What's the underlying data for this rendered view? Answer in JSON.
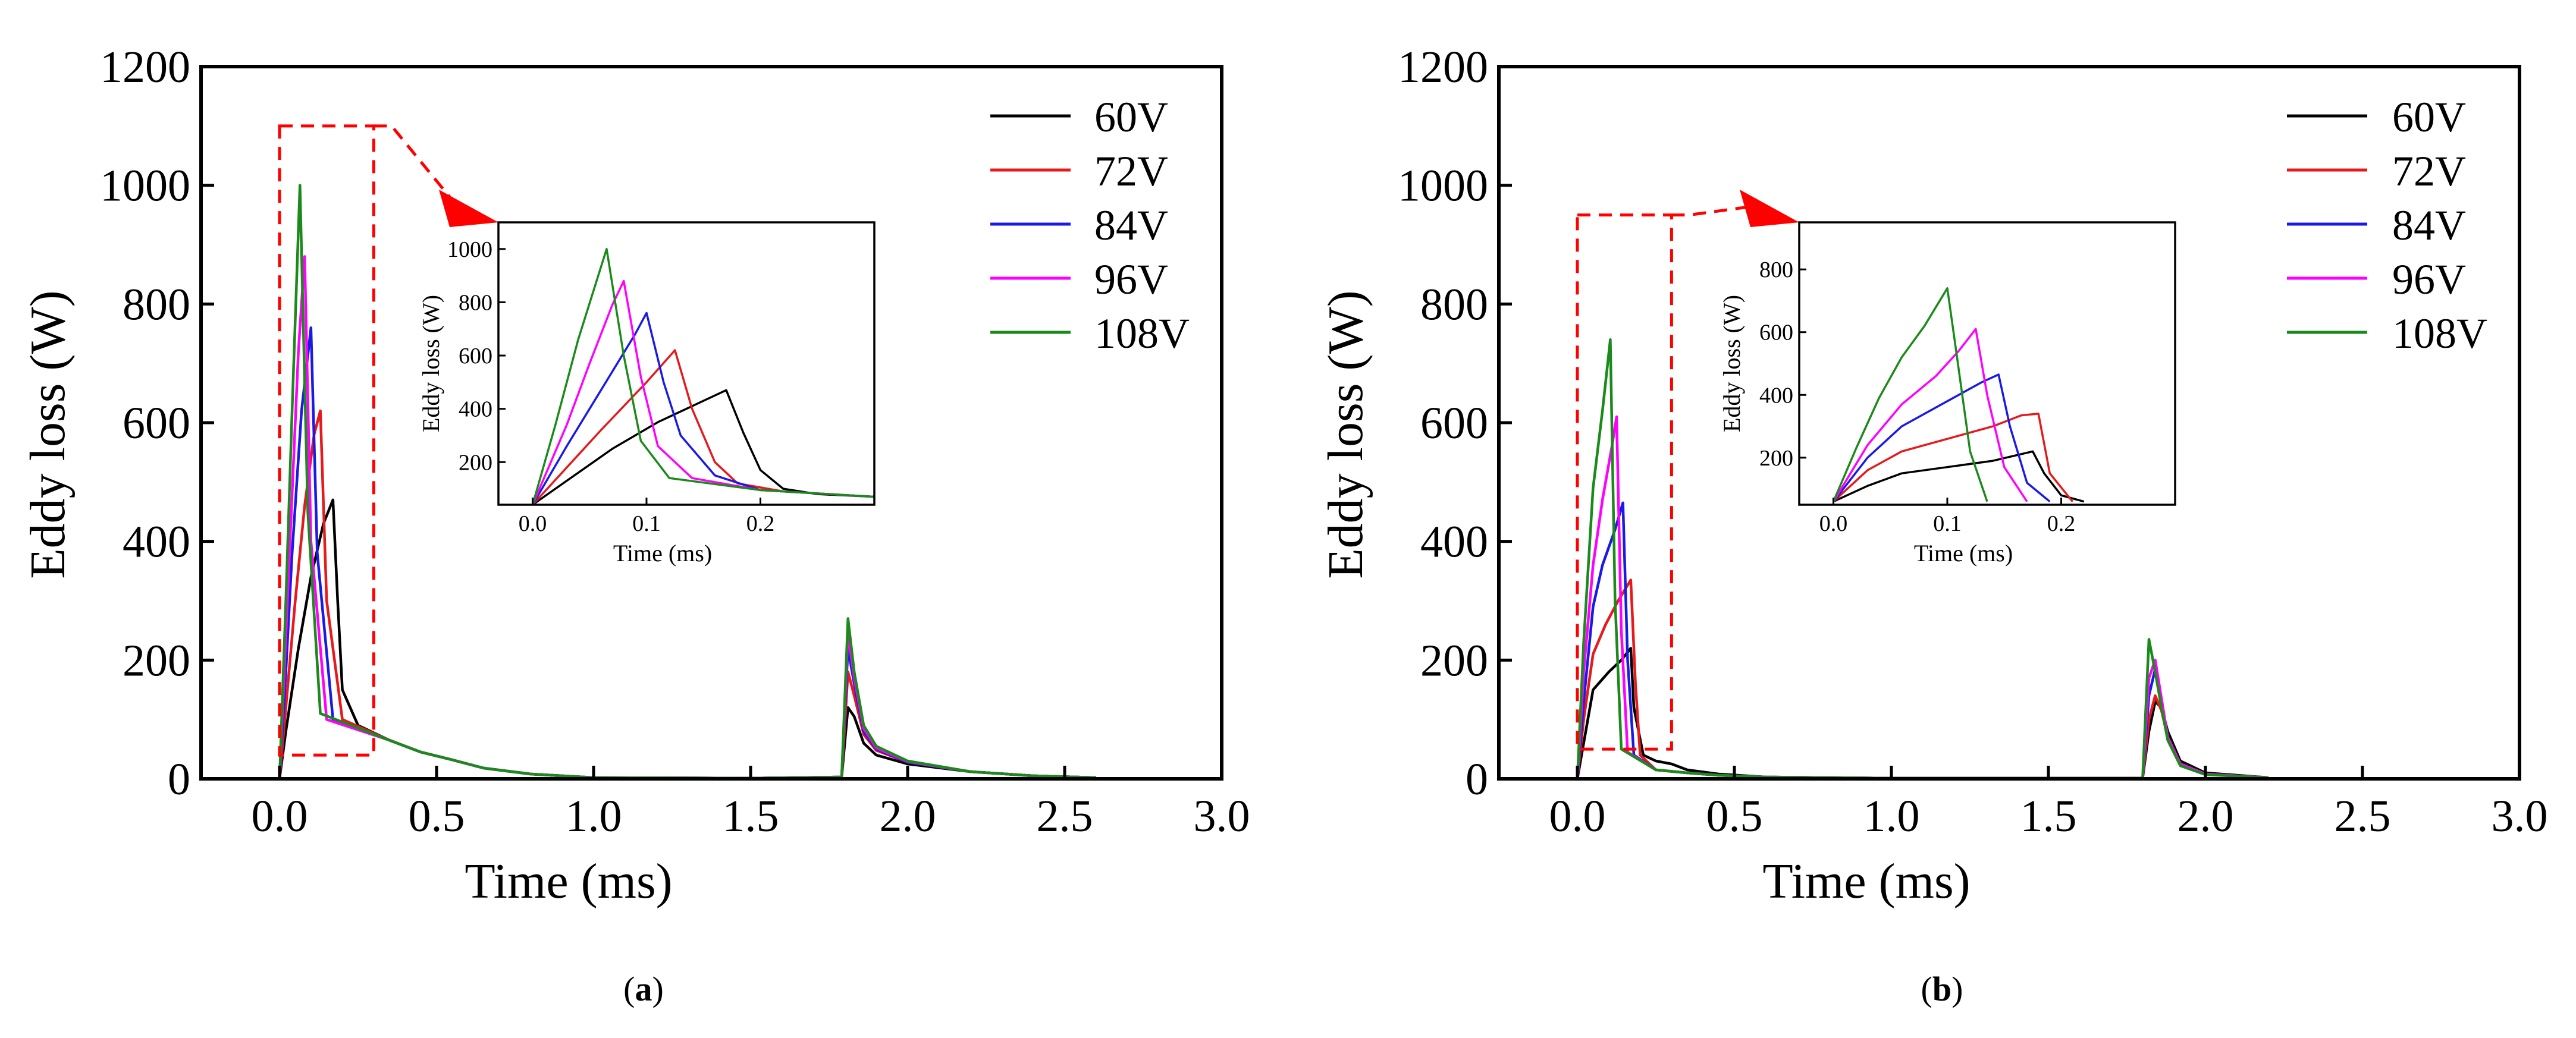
{
  "figure": {
    "captions": [
      "(a)",
      "(b)"
    ],
    "caption_letters": [
      "a",
      "b"
    ],
    "colors": {
      "60V": "#000000",
      "72V": "#e41a1c",
      "84V": "#1a1ae6",
      "96V": "#ff00ff",
      "108V": "#1a8a1a",
      "zoom_box": "#ff0000"
    }
  },
  "chart_data": [
    {
      "id": "a",
      "type": "line",
      "xlabel": "Time (ms)",
      "ylabel": "Eddy loss (W)",
      "xlim": [
        -0.25,
        3.0
      ],
      "ylim": [
        0,
        1200
      ],
      "xticks": [
        0.0,
        0.5,
        1.0,
        1.5,
        2.0,
        2.5,
        3.0
      ],
      "yticks": [
        0,
        200,
        400,
        600,
        800,
        1000,
        1200
      ],
      "legend_position": "top-right",
      "series": [
        {
          "name": "60V",
          "color": "#000000",
          "x": [
            0,
            0.02,
            0.06,
            0.1,
            0.14,
            0.17,
            0.185,
            0.2,
            0.25,
            0.35,
            0.45,
            0.55,
            0.65,
            0.8,
            1.0,
            1.5,
            1.79,
            1.81,
            1.83,
            1.86,
            1.9,
            2.0,
            2.2,
            2.4,
            2.6
          ],
          "y": [
            0,
            80,
            220,
            340,
            430,
            470,
            300,
            150,
            90,
            65,
            45,
            32,
            18,
            8,
            2,
            1,
            3,
            120,
            105,
            60,
            40,
            25,
            12,
            5,
            2
          ]
        },
        {
          "name": "72V",
          "color": "#e41a1c",
          "x": [
            0,
            0.02,
            0.05,
            0.08,
            0.11,
            0.13,
            0.15,
            0.2,
            0.35,
            0.45,
            0.55,
            0.65,
            0.8,
            1.0,
            1.5,
            1.79,
            1.81,
            1.83,
            1.86,
            1.9,
            2.0,
            2.2,
            2.4,
            2.6
          ],
          "y": [
            0,
            120,
            300,
            460,
            580,
            620,
            300,
            100,
            65,
            45,
            32,
            18,
            8,
            2,
            1,
            3,
            180,
            140,
            75,
            48,
            28,
            12,
            5,
            2
          ]
        },
        {
          "name": "84V",
          "color": "#1a1ae6",
          "x": [
            0,
            0.02,
            0.04,
            0.07,
            0.1,
            0.12,
            0.17,
            0.35,
            0.45,
            0.55,
            0.65,
            0.8,
            1.0,
            1.5,
            1.79,
            1.81,
            1.83,
            1.86,
            1.9,
            2.0,
            2.2,
            2.4,
            2.6
          ],
          "y": [
            0,
            180,
            380,
            620,
            760,
            380,
            100,
            65,
            45,
            32,
            18,
            8,
            2,
            1,
            3,
            220,
            160,
            80,
            50,
            28,
            12,
            5,
            2
          ]
        },
        {
          "name": "96V",
          "color": "#ff00ff",
          "x": [
            0,
            0.02,
            0.04,
            0.06,
            0.08,
            0.1,
            0.15,
            0.35,
            0.45,
            0.55,
            0.65,
            0.8,
            1.0,
            1.5,
            1.79,
            1.81,
            1.83,
            1.86,
            1.9,
            2.0,
            2.2,
            2.4,
            2.6
          ],
          "y": [
            0,
            240,
            480,
            720,
            880,
            400,
            100,
            65,
            45,
            32,
            18,
            8,
            2,
            1,
            3,
            245,
            170,
            85,
            52,
            29,
            12,
            5,
            2
          ]
        },
        {
          "name": "108V",
          "color": "#1a8a1a",
          "x": [
            0,
            0.02,
            0.04,
            0.065,
            0.09,
            0.13,
            0.35,
            0.45,
            0.55,
            0.65,
            0.8,
            1.0,
            1.5,
            1.79,
            1.81,
            1.83,
            1.86,
            1.9,
            2.0,
            2.2,
            2.4,
            2.6
          ],
          "y": [
            0,
            300,
            620,
            1000,
            450,
            110,
            65,
            45,
            32,
            18,
            8,
            2,
            1,
            3,
            270,
            180,
            90,
            55,
            30,
            12,
            5,
            2
          ]
        }
      ],
      "zoom_box": {
        "x": [
          0,
          0.3
        ],
        "y": [
          40,
          1100
        ]
      },
      "inset": {
        "xlabel": "Time (ms)",
        "ylabel": "Eddy loss (W)",
        "xlim": [
          -0.03,
          0.3
        ],
        "ylim": [
          40,
          1100
        ],
        "xticks": [
          0.0,
          0.1,
          0.2
        ],
        "yticks": [
          200,
          400,
          600,
          800,
          1000
        ],
        "series": [
          {
            "name": "60V",
            "x": [
              0,
              0.03,
              0.07,
              0.11,
              0.15,
              0.17,
              0.185,
              0.2,
              0.22,
              0.25,
              0.3
            ],
            "y": [
              40,
              130,
              250,
              350,
              430,
              470,
              310,
              170,
              100,
              80,
              70
            ]
          },
          {
            "name": "72V",
            "x": [
              0,
              0.03,
              0.06,
              0.1,
              0.125,
              0.14,
              0.16,
              0.18,
              0.22,
              0.3
            ],
            "y": [
              40,
              180,
              320,
              500,
              620,
              400,
              200,
              120,
              90,
              70
            ]
          },
          {
            "name": "84V",
            "x": [
              0,
              0.03,
              0.06,
              0.09,
              0.1,
              0.115,
              0.13,
              0.16,
              0.2,
              0.3
            ],
            "y": [
              40,
              260,
              470,
              680,
              760,
              500,
              300,
              150,
              95,
              70
            ]
          },
          {
            "name": "96V",
            "x": [
              0,
              0.03,
              0.05,
              0.07,
              0.08,
              0.095,
              0.11,
              0.14,
              0.2,
              0.3
            ],
            "y": [
              40,
              340,
              570,
              790,
              880,
              520,
              260,
              140,
              95,
              70
            ]
          },
          {
            "name": "108V",
            "x": [
              0,
              0.02,
              0.04,
              0.065,
              0.08,
              0.095,
              0.12,
              0.2,
              0.3
            ],
            "y": [
              40,
              340,
              660,
              1000,
              600,
              280,
              140,
              95,
              70
            ]
          }
        ]
      }
    },
    {
      "id": "b",
      "type": "line",
      "xlabel": "Time (ms)",
      "ylabel": "Eddy loss (W)",
      "xlim": [
        -0.25,
        3.0
      ],
      "ylim": [
        0,
        1200
      ],
      "xticks": [
        0.0,
        0.5,
        1.0,
        1.5,
        2.0,
        2.5,
        3.0
      ],
      "yticks": [
        0,
        200,
        400,
        600,
        800,
        1000,
        1200
      ],
      "legend_position": "top-right",
      "series": [
        {
          "name": "60V",
          "color": "#000000",
          "x": [
            0,
            0.02,
            0.05,
            0.1,
            0.14,
            0.17,
            0.18,
            0.21,
            0.25,
            0.3,
            0.35,
            0.45,
            0.6,
            1.0,
            1.8,
            1.82,
            1.84,
            1.86,
            1.88,
            1.92,
            2.0,
            2.2
          ],
          "y": [
            0,
            60,
            150,
            180,
            200,
            220,
            120,
            40,
            30,
            25,
            15,
            8,
            3,
            1,
            1,
            80,
            130,
            120,
            80,
            30,
            10,
            2
          ]
        },
        {
          "name": "72V",
          "color": "#e41a1c",
          "x": [
            0,
            0.02,
            0.05,
            0.09,
            0.13,
            0.17,
            0.185,
            0.2,
            0.25,
            0.35,
            0.45,
            0.6,
            1.0,
            1.8,
            1.82,
            1.84,
            1.86,
            1.88,
            1.92,
            2.0,
            2.2
          ],
          "y": [
            0,
            100,
            210,
            260,
            300,
            335,
            160,
            40,
            15,
            10,
            6,
            3,
            1,
            1,
            100,
            140,
            115,
            70,
            25,
            8,
            2
          ]
        },
        {
          "name": "84V",
          "color": "#1a1ae6",
          "x": [
            0,
            0.02,
            0.05,
            0.08,
            0.12,
            0.145,
            0.16,
            0.18,
            0.25,
            0.35,
            0.45,
            0.6,
            1.0,
            1.8,
            1.82,
            1.84,
            1.86,
            1.88,
            1.92,
            2.0,
            2.2
          ],
          "y": [
            0,
            130,
            290,
            360,
            420,
            465,
            200,
            40,
            15,
            10,
            6,
            3,
            1,
            1,
            140,
            185,
            130,
            70,
            25,
            8,
            2
          ]
        },
        {
          "name": "96V",
          "color": "#ff00ff",
          "x": [
            0,
            0.02,
            0.05,
            0.08,
            0.11,
            0.125,
            0.14,
            0.16,
            0.25,
            0.35,
            0.45,
            0.6,
            1.0,
            1.8,
            1.82,
            1.84,
            1.86,
            1.88,
            1.92,
            2.0,
            2.2
          ],
          "y": [
            0,
            180,
            360,
            470,
            560,
            610,
            250,
            45,
            15,
            10,
            6,
            3,
            1,
            1,
            170,
            200,
            135,
            70,
            25,
            8,
            2
          ]
        },
        {
          "name": "108V",
          "color": "#1a8a1a",
          "x": [
            0,
            0.02,
            0.05,
            0.08,
            0.105,
            0.12,
            0.14,
            0.25,
            0.35,
            0.45,
            0.6,
            1.0,
            1.8,
            1.82,
            1.84,
            1.86,
            1.88,
            1.92,
            2.0,
            2.2
          ],
          "y": [
            0,
            230,
            490,
            620,
            740,
            300,
            50,
            15,
            10,
            6,
            3,
            1,
            1,
            235,
            180,
            120,
            65,
            22,
            7,
            2
          ]
        }
      ],
      "zoom_box": {
        "x": [
          0,
          0.3
        ],
        "y": [
          50,
          950
        ]
      },
      "inset": {
        "xlabel": "Time (ms)",
        "ylabel": "Eddy loss (W)",
        "xlim": [
          -0.03,
          0.3
        ],
        "ylim": [
          50,
          950
        ],
        "xticks": [
          0.0,
          0.1,
          0.2
        ],
        "yticks": [
          200,
          400,
          600,
          800
        ],
        "series": [
          {
            "name": "60V",
            "x": [
              0,
              0.03,
              0.06,
              0.1,
              0.14,
              0.175,
              0.185,
              0.2,
              0.22
            ],
            "y": [
              60,
              110,
              150,
              170,
              190,
              220,
              150,
              80,
              60
            ]
          },
          {
            "name": "72V",
            "x": [
              0,
              0.03,
              0.06,
              0.1,
              0.14,
              0.165,
              0.18,
              0.19,
              0.21
            ],
            "y": [
              60,
              160,
              220,
              260,
              300,
              335,
              340,
              150,
              60
            ]
          },
          {
            "name": "84V",
            "x": [
              0,
              0.03,
              0.06,
              0.1,
              0.13,
              0.145,
              0.155,
              0.17,
              0.19
            ],
            "y": [
              60,
              200,
              300,
              380,
              440,
              465,
              300,
              120,
              60
            ]
          },
          {
            "name": "96V",
            "x": [
              0,
              0.03,
              0.06,
              0.09,
              0.11,
              0.125,
              0.135,
              0.15,
              0.17
            ],
            "y": [
              60,
              240,
              370,
              460,
              540,
              610,
              400,
              170,
              60
            ]
          },
          {
            "name": "108V",
            "x": [
              0,
              0.02,
              0.04,
              0.06,
              0.08,
              0.1,
              0.107,
              0.12,
              0.135
            ],
            "y": [
              60,
              230,
              390,
              520,
              620,
              740,
              560,
              220,
              60
            ]
          }
        ]
      }
    }
  ]
}
